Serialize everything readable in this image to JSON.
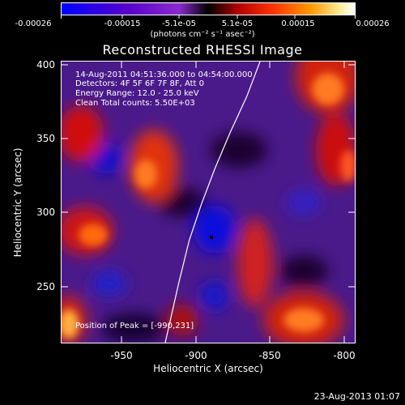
{
  "colorbar": {
    "ticks": [
      "-0.00026",
      "-0.00015",
      "-5.1e-05",
      "5.1e-05",
      "0.00015",
      "0.00026"
    ],
    "units": "(photons cm⁻² s⁻¹ asec⁻²)",
    "colors": [
      "#0000ff",
      "#4400dd",
      "#8800bb",
      "#000000",
      "#cc1100",
      "#ff5500",
      "#ffaa33",
      "#ffffcc",
      "#ffffff"
    ]
  },
  "chart_data": {
    "type": "heatmap",
    "title": "Reconstructed RHESSI Image",
    "xlabel": "Heliocentric X (arcsec)",
    "ylabel": "Heliocentric Y (arcsec)",
    "xlim": [
      -990,
      -795
    ],
    "ylim": [
      208,
      405
    ],
    "xticks": [
      -950,
      -900,
      -850,
      -800
    ],
    "yticks": [
      250,
      300,
      350,
      400
    ],
    "colorbar_range": [
      -0.00026,
      0.00026
    ],
    "peak": {
      "x": -990,
      "y": 231
    },
    "limb_curve": [
      [
        -921,
        208
      ],
      [
        -912,
        250
      ],
      [
        -905,
        280
      ],
      [
        -897,
        305
      ],
      [
        -888,
        330
      ],
      [
        -878,
        355
      ],
      [
        -867,
        380
      ],
      [
        -858,
        405
      ]
    ]
  },
  "info": {
    "line1": "14-Aug-2011 04:51:36.000 to 04:54:00.000",
    "line2": "Detectors: 4F 5F 6F 7F 8F, Att 0",
    "line3": "Energy Range: 12.0 - 25.0 keV",
    "line4": "Clean    Total counts: 5.50E+03",
    "peak": "Position of Peak = [-990,231]"
  },
  "timestamp": "23-Aug-2013 01:07"
}
